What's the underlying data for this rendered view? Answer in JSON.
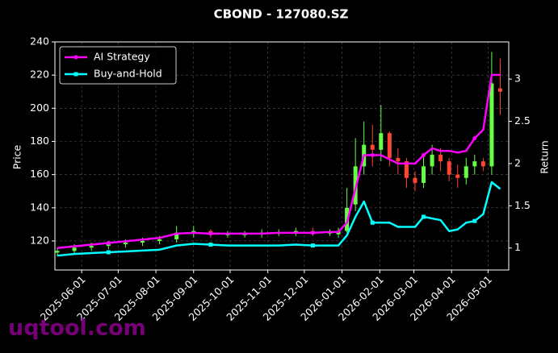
{
  "chart_data": {
    "type": "candlestick",
    "title": "CBOND - 127080.SZ",
    "ylabel": "Price",
    "y2label": "Return",
    "watermark": "uqtool.com",
    "x": [
      "2025-05-12",
      "2025-05-26",
      "2025-06-09",
      "2025-06-23",
      "2025-07-07",
      "2025-07-21",
      "2025-08-04",
      "2025-08-18",
      "2025-09-01",
      "2025-09-15",
      "2025-09-29",
      "2025-10-13",
      "2025-10-27",
      "2025-11-10",
      "2025-11-24",
      "2025-12-08",
      "2025-12-22",
      "2025-12-29",
      "2026-01-05",
      "2026-01-12",
      "2026-01-19",
      "2026-01-26",
      "2026-02-02",
      "2026-02-09",
      "2026-02-16",
      "2026-02-23",
      "2026-03-02",
      "2026-03-09",
      "2026-03-16",
      "2026-03-23",
      "2026-03-30",
      "2026-04-06",
      "2026-04-13",
      "2026-04-20",
      "2026-04-27",
      "2026-05-04",
      "2026-05-11"
    ],
    "open": [
      113,
      114,
      116,
      117,
      118,
      119,
      120,
      121,
      125,
      126,
      124,
      124,
      124,
      125,
      125,
      126,
      125,
      124,
      126,
      142,
      165,
      178,
      175,
      185,
      170,
      168,
      158,
      155,
      165,
      172,
      168,
      160,
      158,
      165,
      168,
      165,
      212
    ],
    "high": [
      116,
      118,
      119,
      120,
      121,
      122,
      123,
      129,
      129,
      127,
      126,
      126,
      127,
      127,
      128,
      128,
      127,
      128,
      152,
      182,
      192,
      190,
      202,
      186,
      176,
      170,
      162,
      172,
      178,
      176,
      170,
      166,
      170,
      172,
      170,
      234,
      230
    ],
    "low": [
      111,
      112,
      114,
      115,
      116,
      117,
      118,
      119,
      122,
      122,
      122,
      122,
      122,
      123,
      123,
      123,
      123,
      122,
      125,
      138,
      160,
      165,
      168,
      165,
      160,
      152,
      150,
      152,
      160,
      162,
      156,
      152,
      154,
      160,
      162,
      160,
      196
    ],
    "close": [
      114,
      116,
      117,
      118,
      119,
      120,
      121,
      125,
      126,
      124,
      124,
      124,
      125,
      125,
      126,
      125,
      125,
      126,
      140,
      165,
      178,
      175,
      185,
      170,
      168,
      158,
      155,
      165,
      172,
      168,
      160,
      158,
      165,
      168,
      165,
      215,
      210
    ],
    "up_color": "#66ff44",
    "down_color": "#ff4433",
    "series": [
      {
        "name": "AI Strategy",
        "color": "#ff00ff",
        "marker": "circle",
        "axis": "y2",
        "values": [
          1.0,
          1.02,
          1.04,
          1.06,
          1.08,
          1.1,
          1.12,
          1.17,
          1.18,
          1.17,
          1.17,
          1.17,
          1.17,
          1.18,
          1.18,
          1.18,
          1.19,
          1.19,
          1.3,
          1.7,
          2.1,
          2.1,
          2.1,
          2.05,
          2.0,
          2.0,
          2.0,
          2.1,
          2.18,
          2.15,
          2.15,
          2.13,
          2.15,
          2.3,
          2.4,
          3.05,
          3.05
        ]
      },
      {
        "name": "Buy-and-Hold",
        "color": "#00ffff",
        "marker": "square",
        "axis": "y2",
        "values": [
          0.91,
          0.93,
          0.94,
          0.95,
          0.96,
          0.97,
          0.98,
          1.03,
          1.05,
          1.04,
          1.03,
          1.03,
          1.03,
          1.03,
          1.04,
          1.03,
          1.03,
          1.03,
          1.15,
          1.37,
          1.55,
          1.3,
          1.3,
          1.3,
          1.25,
          1.25,
          1.25,
          1.37,
          1.35,
          1.33,
          1.2,
          1.22,
          1.3,
          1.32,
          1.4,
          1.78,
          1.7
        ]
      }
    ],
    "xlim": [
      "2025-05-10",
      "2026-05-18"
    ],
    "xticks": [
      "2025-06-01",
      "2025-07-01",
      "2025-08-01",
      "2025-09-01",
      "2025-10-01",
      "2025-11-01",
      "2025-12-01",
      "2026-01-01",
      "2026-02-01",
      "2026-03-01",
      "2026-04-01",
      "2026-05-01"
    ],
    "ylim": [
      102.5,
      240
    ],
    "yticks": [
      120,
      140,
      160,
      180,
      200,
      220,
      240
    ],
    "y2lim": [
      0.74,
      3.44
    ],
    "y2ticks": [
      1.0,
      1.5,
      2.0,
      2.5,
      3.0
    ],
    "grid": true,
    "legend": "upper left"
  }
}
